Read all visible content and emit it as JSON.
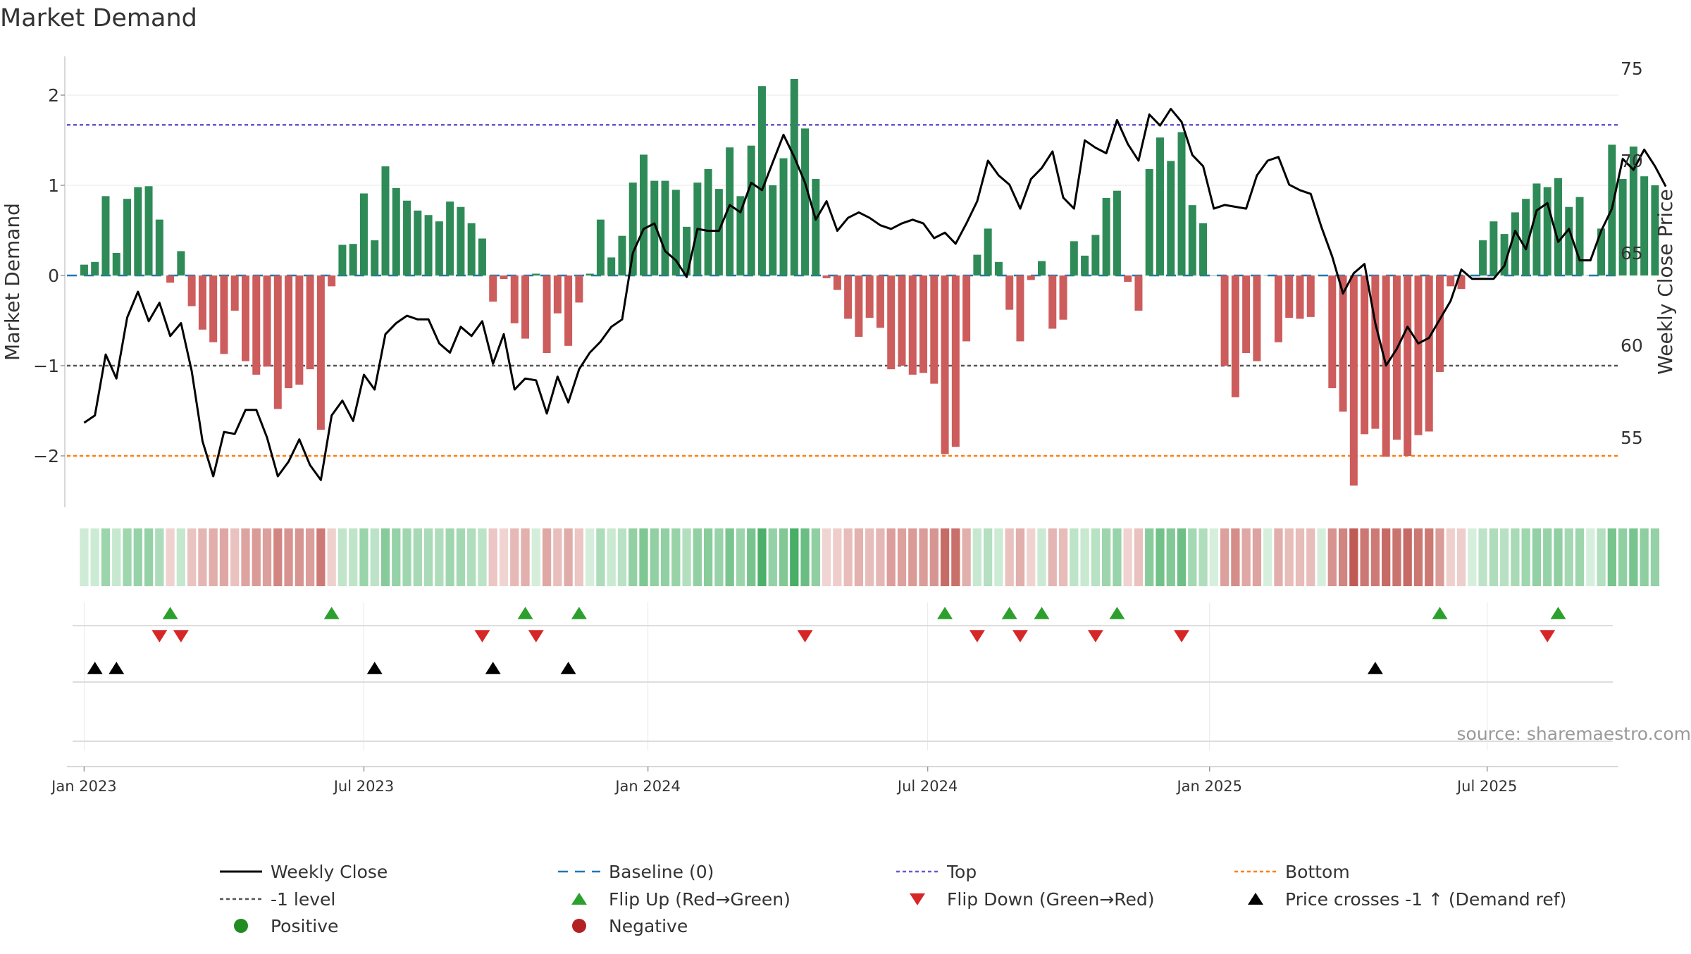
{
  "chart_data": {
    "type": "bar",
    "title": "Market Demand",
    "ylabel_left": "Market Demand",
    "ylabel_right": "Weekly Close Price",
    "ylim_left": [
      -2.55,
      2.45
    ],
    "ylim_right": [
      51.5,
      76.5
    ],
    "yticks_left": [
      {
        "value": 2,
        "label": "2"
      },
      {
        "value": 1,
        "label": "1"
      },
      {
        "value": 0,
        "label": "0"
      },
      {
        "value": -1,
        "label": "−1"
      },
      {
        "value": -2,
        "label": "−2"
      }
    ],
    "yticks_right": [
      {
        "value": 75,
        "label": "75"
      },
      {
        "value": 70,
        "label": "70"
      },
      {
        "value": 65,
        "label": "65"
      },
      {
        "value": 60,
        "label": "60"
      },
      {
        "value": 55,
        "label": "55"
      }
    ],
    "x_ticks": [
      {
        "week": 0,
        "label": "Jan 2023"
      },
      {
        "week": 26,
        "label": "Jul 2023"
      },
      {
        "week": 52.4,
        "label": "Jan 2024"
      },
      {
        "week": 78.4,
        "label": "Jul 2024"
      },
      {
        "week": 104.6,
        "label": "Jan 2025"
      },
      {
        "week": 130.4,
        "label": "Jul 2025"
      }
    ],
    "first_week": "2023-01-06",
    "x_range": [
      -1.6,
      142.6
    ],
    "reference_lines": {
      "top": 1.67,
      "minus_one": -1,
      "bottom": -2,
      "baseline": 0
    },
    "demand": [
      0.12,
      0.15,
      0.88,
      0.25,
      0.85,
      0.98,
      0.99,
      0.62,
      -0.08,
      0.27,
      -0.34,
      -0.6,
      -0.74,
      -0.87,
      -0.39,
      -0.95,
      -1.1,
      -1.01,
      -1.48,
      -1.25,
      -1.21,
      -1.04,
      -1.71,
      -0.12,
      0.34,
      0.35,
      0.91,
      0.39,
      1.21,
      0.97,
      0.83,
      0.72,
      0.67,
      0.6,
      0.82,
      0.76,
      0.58,
      0.41,
      -0.29,
      -0.04,
      -0.53,
      -0.7,
      0.02,
      -0.86,
      -0.42,
      -0.78,
      -0.3,
      0.02,
      0.62,
      0.2,
      0.44,
      1.03,
      1.34,
      1.05,
      1.05,
      0.95,
      0.54,
      1.03,
      1.18,
      0.96,
      1.42,
      0.88,
      1.44,
      2.1,
      1.0,
      1.3,
      2.18,
      1.63,
      1.07,
      -0.03,
      -0.16,
      -0.48,
      -0.68,
      -0.47,
      -0.58,
      -1.04,
      -1.0,
      -1.1,
      -1.08,
      -1.2,
      -1.98,
      -1.9,
      -0.73,
      0.23,
      0.52,
      0.15,
      -0.38,
      -0.73,
      -0.05,
      0.16,
      -0.59,
      -0.49,
      0.38,
      0.22,
      0.45,
      0.86,
      0.94,
      -0.07,
      -0.39,
      1.18,
      1.53,
      1.27,
      1.59,
      0.78,
      0.58,
      0.0,
      -1.0,
      -1.35,
      -0.86,
      -0.95,
      0.0,
      -0.74,
      -0.47,
      -0.48,
      -0.46,
      0.0,
      -1.25,
      -1.51,
      -2.33,
      -1.76,
      -1.7,
      -2.01,
      -1.82,
      -2.0,
      -1.77,
      -1.73,
      -1.07,
      -0.12,
      -0.15,
      0.0,
      0.39,
      0.6,
      0.46,
      0.7,
      0.85,
      1.02,
      0.98,
      1.08,
      0.76,
      0.87,
      0.0,
      0.52,
      1.45,
      1.07,
      1.43,
      1.1,
      1.0
    ],
    "weekly_close": [
      55.8,
      56.2,
      59.5,
      58.2,
      61.5,
      62.9,
      61.3,
      62.3,
      60.5,
      61.2,
      58.6,
      54.8,
      52.9,
      55.3,
      55.2,
      56.5,
      56.5,
      55.0,
      52.9,
      53.7,
      54.9,
      53.5,
      52.7,
      56.2,
      57.0,
      55.9,
      58.4,
      57.6,
      60.6,
      61.2,
      61.6,
      61.4,
      61.4,
      60.1,
      59.6,
      61.0,
      60.5,
      61.3,
      59.0,
      60.6,
      57.6,
      58.2,
      58.1,
      56.3,
      58.3,
      56.9,
      58.7,
      59.6,
      60.2,
      61.0,
      61.4,
      65.0,
      66.3,
      66.6,
      65.1,
      64.6,
      63.7,
      66.3,
      66.2,
      66.2,
      67.6,
      67.2,
      68.8,
      68.4,
      69.9,
      71.4,
      70.2,
      68.8,
      66.8,
      67.8,
      66.2,
      66.9,
      67.2,
      66.9,
      66.5,
      66.3,
      66.6,
      66.8,
      66.6,
      65.8,
      66.1,
      65.5,
      66.6,
      67.8,
      70.0,
      69.2,
      68.7,
      67.4,
      69.0,
      69.6,
      70.5,
      68.0,
      67.4,
      71.1,
      70.7,
      70.4,
      72.2,
      70.9,
      70.0,
      72.5,
      71.9,
      72.8,
      72.1,
      70.3,
      69.7,
      67.4,
      67.6,
      67.5,
      67.4,
      69.2,
      70.0,
      70.2,
      68.7,
      68.4,
      68.2,
      66.4,
      64.8,
      62.8,
      63.9,
      64.4,
      61.2,
      58.9,
      59.8,
      61.0,
      60.1,
      60.4,
      61.4,
      62.4,
      64.1,
      63.6,
      63.6,
      63.6,
      64.3,
      66.2,
      65.2,
      67.3,
      67.7,
      65.6,
      66.3,
      64.6,
      64.6,
      66.2,
      67.4,
      70.1,
      69.5,
      70.6,
      69.7,
      68.6
    ],
    "flip_up_weeks": [
      8,
      23,
      41,
      46,
      80,
      86,
      89,
      96,
      126,
      137
    ],
    "flip_down_weeks": [
      7,
      9,
      37,
      42,
      67,
      83,
      87,
      94,
      102,
      136
    ],
    "price_cross_weeks": [
      1,
      3,
      27,
      38,
      45,
      120
    ],
    "colors": {
      "positive": "#2e8b57",
      "negative": "#cd5c5c",
      "price_line": "#000000",
      "baseline": "#1f77b4",
      "top": "#6a5acd",
      "minus_one": "#555555",
      "bottom": "#ff7f0e",
      "flip_up": "#2ca02c",
      "flip_down": "#d62728",
      "cross": "#000000",
      "axis": "#cccccc",
      "grid": "#e8e8e8"
    }
  },
  "source_label": "source: sharemaestro.com",
  "legend": [
    {
      "label": "Weekly Close",
      "icon": "solid-line",
      "color": "#000000"
    },
    {
      "label": "Baseline (0)",
      "icon": "dashed-line",
      "color": "#1f77b4"
    },
    {
      "label": "Top",
      "icon": "dotted-line",
      "color": "#6a5acd"
    },
    {
      "label": "Bottom",
      "icon": "dotted-line",
      "color": "#ff7f0e"
    },
    {
      "label": "-1 level",
      "icon": "dotted-line",
      "color": "#555555"
    },
    {
      "label": "Flip Up (Red→Green)",
      "icon": "triangle-up",
      "color": "#2ca02c"
    },
    {
      "label": "Flip Down (Green→Red)",
      "icon": "triangle-down",
      "color": "#d62728"
    },
    {
      "label": "Price crosses -1 ↑ (Demand ref)",
      "icon": "triangle-up",
      "color": "#000000"
    },
    {
      "label": "Positive",
      "icon": "circle",
      "color": "#228b22"
    },
    {
      "label": "Negative",
      "icon": "circle",
      "color": "#b22222"
    }
  ]
}
